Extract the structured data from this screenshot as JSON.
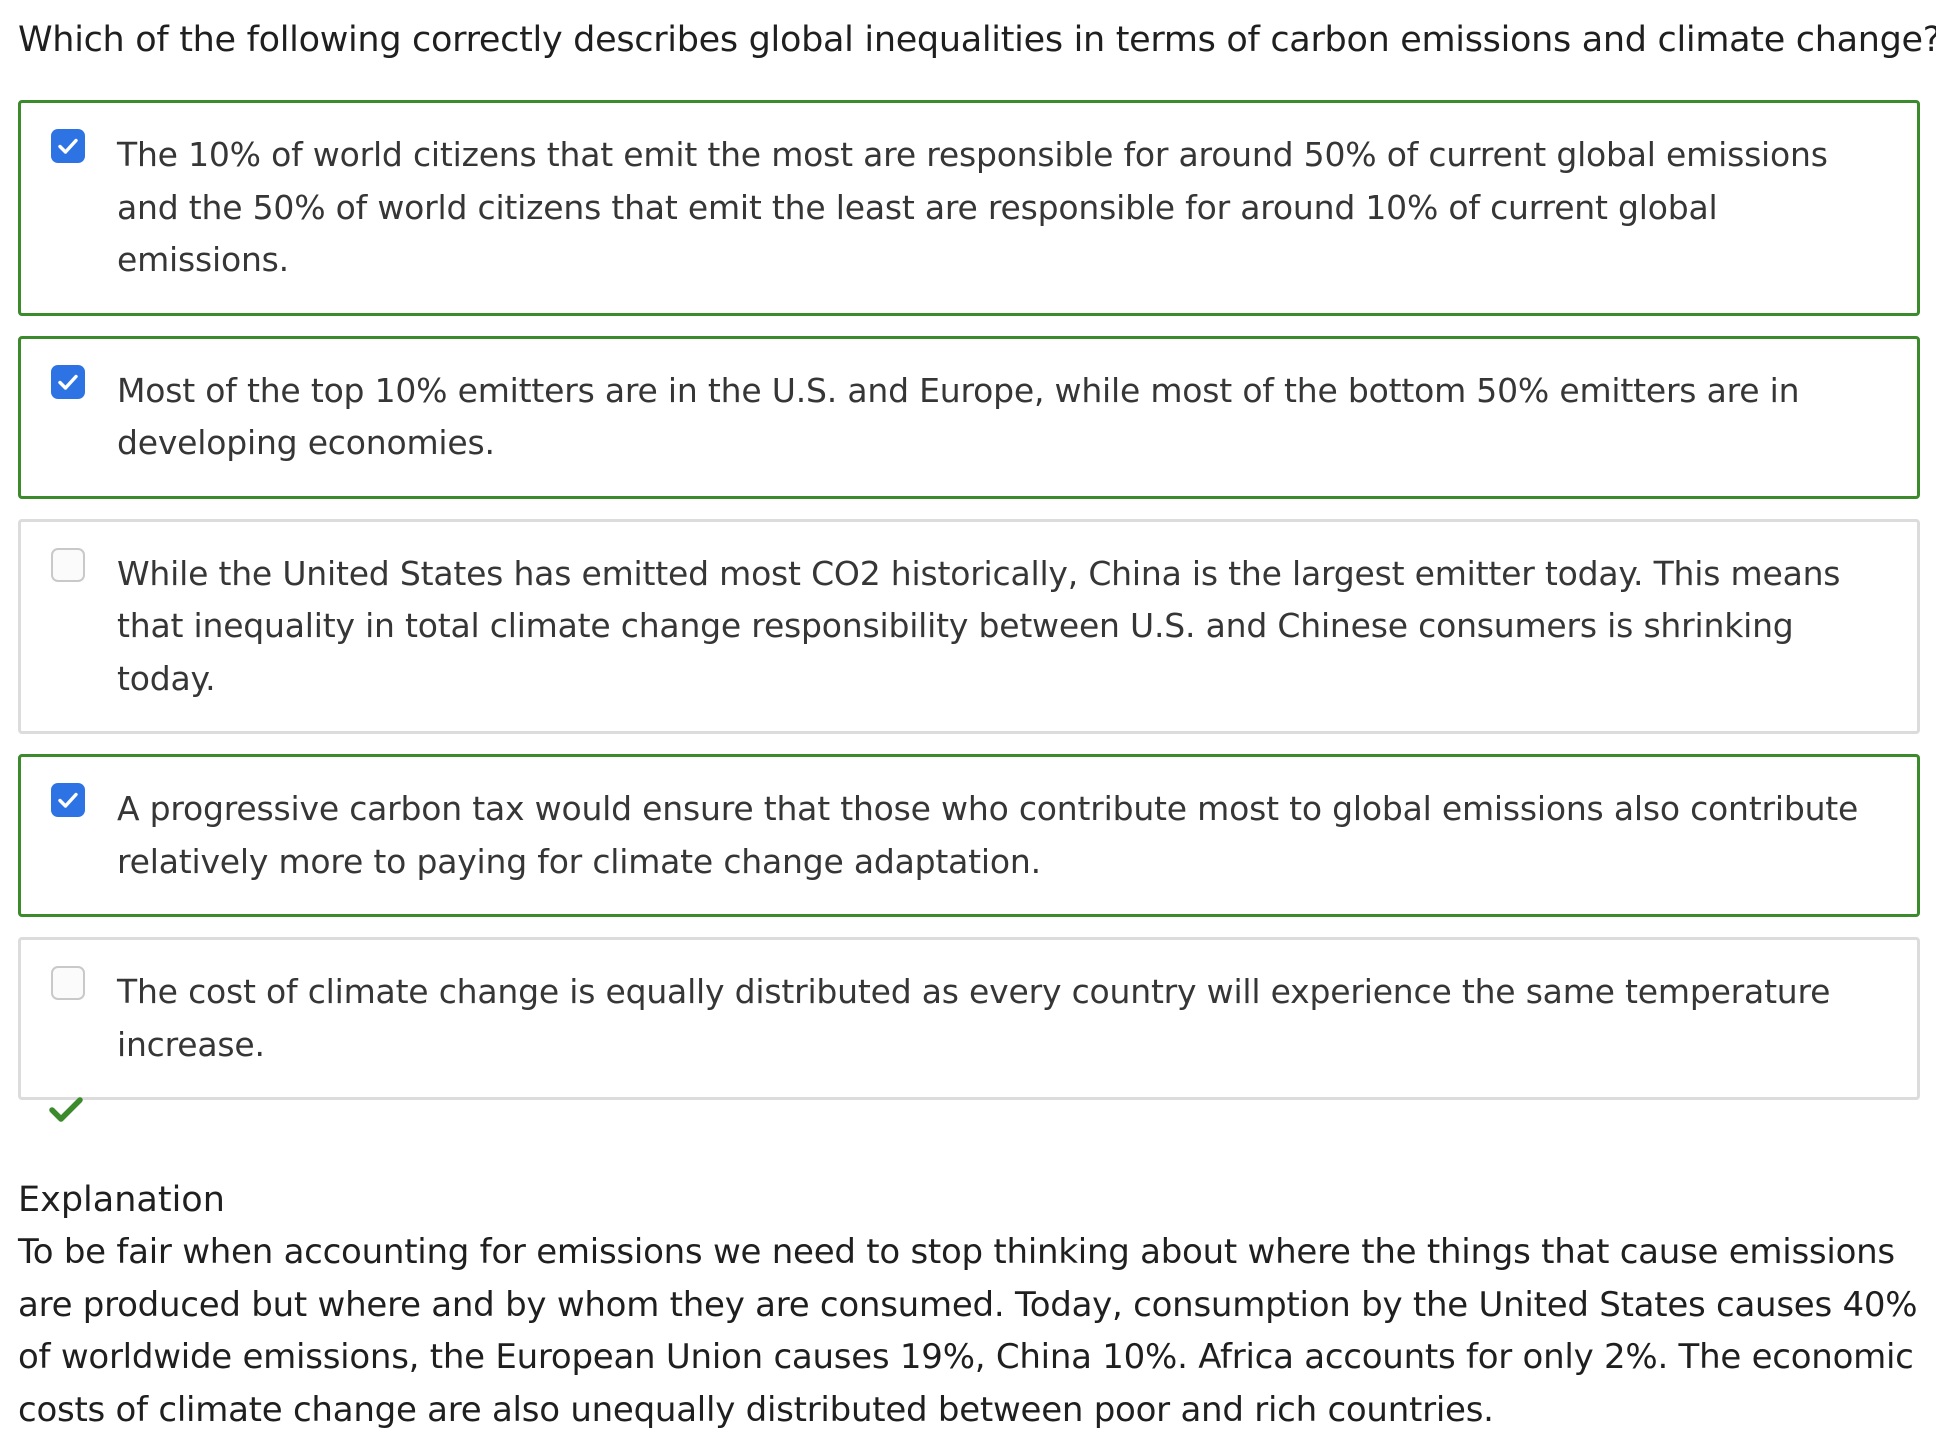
{
  "question": {
    "text": "Which of the following correctly describes global inequalities in terms of carbon emissions and climate change?"
  },
  "options": [
    {
      "text": "The 10% of world citizens that emit the most are responsible for around 50% of current global emissions and the 50% of world citizens that emit the least are responsible for around 10% of current global emissions.",
      "checked": true
    },
    {
      "text": "Most of the top 10% emitters are in the U.S. and Europe, while most of the bottom 50% emitters are in developing economies.",
      "checked": true
    },
    {
      "text": "While the United States has emitted most CO2 historically, China is the largest emitter today. This means that inequality in total climate change responsibility between U.S. and Chinese consumers is shrinking today.",
      "checked": false
    },
    {
      "text": "A progressive carbon tax would ensure that those who contribute most to global emissions also contribute relatively more to paying for climate change adaptation.",
      "checked": true
    },
    {
      "text": "The cost of climate change is equally distributed as every country will experience the same temperature increase.",
      "checked": false
    }
  ],
  "result": {
    "icon": "checkmark-icon",
    "color": "#3b8a2c"
  },
  "explanation": {
    "title": "Explanation",
    "text": "To be fair when accounting for emissions we need to stop thinking about where the things that cause emissions are produced but where and by whom they are consumed. Today, consumption by the United States causes 40% of worldwide emissions, the European Union causes 19%, China 10%. Africa accounts for only 2%. The economic costs of climate change are also unequally distributed between poor and rich countries."
  },
  "colors": {
    "selected_border": "#3b8a2c",
    "unselected_border": "#dcdcdc",
    "checkbox_checked": "#2d73e4"
  }
}
